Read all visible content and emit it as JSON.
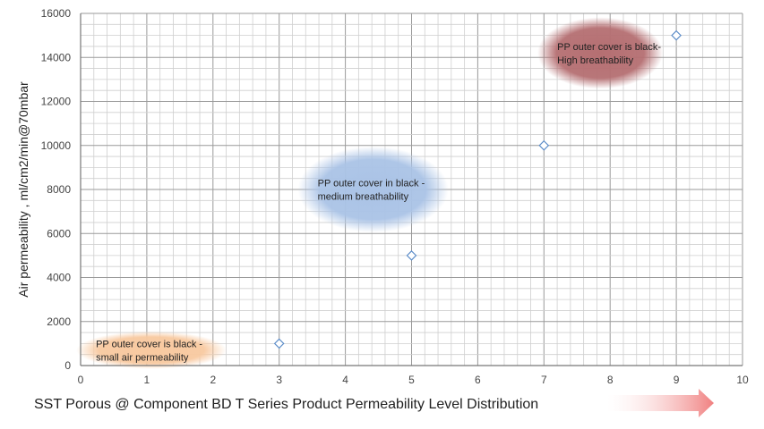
{
  "chart_data": {
    "type": "scatter",
    "title": "",
    "xlabel": "SST Porous @ Component BD T Series Product Permeability Level Distribution",
    "ylabel": "Air permeability , ml/cm2/min@70mbar",
    "xlim": [
      0,
      10
    ],
    "ylim": [
      0,
      16000
    ],
    "x_ticks": [
      0,
      1,
      2,
      3,
      4,
      5,
      6,
      7,
      8,
      9,
      10
    ],
    "y_ticks": [
      0,
      2000,
      4000,
      6000,
      8000,
      10000,
      12000,
      14000,
      16000
    ],
    "grid": true,
    "series": [
      {
        "points": [
          {
            "x": 3,
            "y": 1000
          },
          {
            "x": 5,
            "y": 5000
          },
          {
            "x": 7,
            "y": 10000
          },
          {
            "x": 9,
            "y": 15000
          }
        ],
        "marker": "diamond",
        "color": "#5b8cc8"
      }
    ],
    "annotations": [
      {
        "lines": [
          "PP outer cover is black -",
          "small air permeability"
        ],
        "color": "#f8c9a0"
      },
      {
        "lines": [
          "PP outer cover in black -",
          "medium breathability"
        ],
        "color": "#aac3e6"
      },
      {
        "lines": [
          "PP outer cover is black-",
          "High breathability"
        ],
        "color": "#b56f72"
      }
    ],
    "arrow_color": "#f08080"
  }
}
